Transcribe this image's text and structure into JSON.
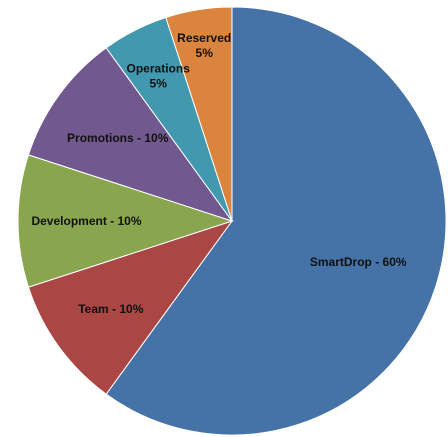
{
  "chart_data": {
    "type": "pie",
    "title": "",
    "legend": "none",
    "slices": [
      {
        "label": "SmartDrop - 60%",
        "label_lines": [
          "SmartDrop - 60%"
        ],
        "value": 60,
        "color": "#4572A7"
      },
      {
        "label": "Team - 10%",
        "label_lines": [
          "Team - 10%"
        ],
        "value": 10,
        "color": "#AA4643"
      },
      {
        "label": "Development - 10%",
        "label_lines": [
          "Development - 10%"
        ],
        "value": 10,
        "color": "#89A54E"
      },
      {
        "label": "Promotions - 10%",
        "label_lines": [
          "Promotions - 10%"
        ],
        "value": 10,
        "color": "#71588F"
      },
      {
        "label": "Operations 5%",
        "label_lines": [
          "Operations",
          "5%"
        ],
        "value": 5,
        "color": "#4198AF"
      },
      {
        "label": "Reserved 5%",
        "label_lines": [
          "Reserved",
          "5%"
        ],
        "value": 5,
        "color": "#DB843D"
      }
    ]
  }
}
